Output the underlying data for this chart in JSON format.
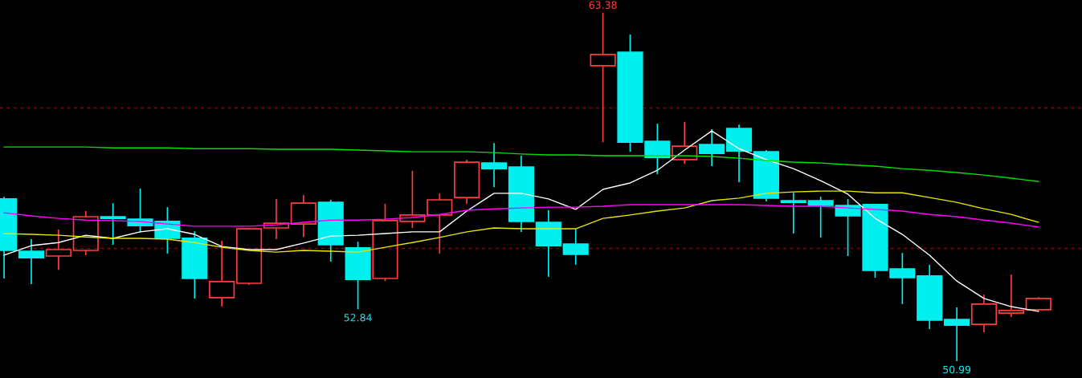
{
  "chart_data": {
    "type": "candlestick",
    "categories": [
      null,
      null,
      null,
      null,
      null,
      null,
      null,
      null,
      null,
      null,
      null,
      null,
      null,
      null,
      null,
      null,
      null,
      null,
      null,
      null,
      null,
      null,
      null,
      null,
      null,
      null,
      null,
      null,
      null,
      null,
      null,
      null,
      null,
      null,
      null,
      null,
      null,
      null,
      null
    ],
    "ohlc": [
      [
        56.76,
        56.84,
        53.93,
        54.93
      ],
      [
        54.9,
        55.33,
        53.73,
        54.67
      ],
      [
        54.73,
        55.67,
        54.24,
        54.96
      ],
      [
        54.93,
        56.33,
        54.76,
        56.13
      ],
      [
        56.13,
        56.61,
        55.13,
        56.07
      ],
      [
        56.04,
        57.13,
        55.56,
        55.81
      ],
      [
        55.96,
        56.47,
        54.82,
        55.36
      ],
      [
        55.36,
        55.61,
        53.22,
        53.93
      ],
      [
        53.25,
        55.27,
        52.93,
        53.82
      ],
      [
        53.76,
        55.73,
        53.7,
        55.7
      ],
      [
        55.73,
        56.76,
        55.33,
        55.9
      ],
      [
        55.87,
        56.9,
        55.41,
        56.61
      ],
      [
        56.64,
        56.73,
        54.53,
        55.13
      ],
      [
        55.02,
        55.24,
        52.84,
        53.9
      ],
      [
        53.93,
        56.59,
        53.84,
        55.99
      ],
      [
        55.96,
        57.76,
        55.73,
        56.19
      ],
      [
        56.19,
        56.96,
        54.82,
        56.73
      ],
      [
        56.81,
        58.16,
        56.59,
        58.07
      ],
      [
        58.04,
        58.75,
        57.18,
        57.84
      ],
      [
        57.9,
        58.3,
        55.59,
        55.96
      ],
      [
        55.93,
        56.36,
        53.99,
        55.1
      ],
      [
        55.16,
        55.7,
        54.42,
        54.79
      ],
      [
        61.5,
        63.38,
        58.78,
        61.9
      ],
      [
        61.98,
        62.61,
        58.44,
        58.78
      ],
      [
        58.81,
        59.44,
        57.64,
        58.24
      ],
      [
        58.16,
        59.5,
        58.01,
        58.64
      ],
      [
        58.7,
        59.24,
        57.93,
        58.38
      ],
      [
        59.27,
        59.41,
        57.36,
        58.47
      ],
      [
        58.44,
        58.5,
        56.67,
        56.79
      ],
      [
        56.7,
        56.98,
        55.53,
        56.64
      ],
      [
        56.7,
        56.84,
        55.39,
        56.53
      ],
      [
        56.53,
        56.76,
        54.73,
        56.16
      ],
      [
        56.56,
        56.56,
        53.96,
        54.22
      ],
      [
        54.27,
        54.84,
        53.02,
        53.96
      ],
      [
        54.02,
        54.42,
        52.13,
        52.45
      ],
      [
        52.47,
        52.9,
        50.99,
        52.27
      ],
      [
        52.3,
        53.36,
        52.02,
        53.02
      ],
      [
        52.7,
        54.07,
        52.56,
        52.79
      ],
      [
        52.82,
        53.27,
        52.76,
        53.22
      ]
    ],
    "colors": [
      "#00f0f0",
      "#00f0f0",
      "#ff3c3c",
      "#ff3c3c",
      "#00f0f0",
      "#00f0f0",
      "#00f0f0",
      "#00f0f0",
      "#ff3c3c",
      "#ff3c3c",
      "#ff3c3c",
      "#ff3c3c",
      "#00f0f0",
      "#00f0f0",
      "#ff3c3c",
      "#ff3c3c",
      "#ff3c3c",
      "#ff3c3c",
      "#00f0f0",
      "#00f0f0",
      "#00f0f0",
      "#00f0f0",
      "#ff3c3c",
      "#00f0f0",
      "#00f0f0",
      "#ff3c3c",
      "#00f0f0",
      "#00f0f0",
      "#00f0f0",
      "#00f0f0",
      "#00f0f0",
      "#00f0f0",
      "#00f0f0",
      "#00f0f0",
      "#00f0f0",
      "#00f0f0",
      "#ff3c3c",
      "#ff3c3c",
      "#ff3c3c"
    ],
    "series": [
      {
        "type": "line",
        "color": "#ffffff",
        "values": [
          54.76,
          55.1,
          55.21,
          55.47,
          55.36,
          55.59,
          55.7,
          55.5,
          55.07,
          54.96,
          54.96,
          55.19,
          55.44,
          55.47,
          55.53,
          55.59,
          55.59,
          56.33,
          56.96,
          56.96,
          56.76,
          56.39,
          57.1,
          57.33,
          57.78,
          58.5,
          59.18,
          58.55,
          58.16,
          57.84,
          57.41,
          56.93,
          56.07,
          55.5,
          54.76,
          53.84,
          53.22,
          52.93,
          52.76
        ]
      },
      {
        "type": "line",
        "color": "#e6e600",
        "values": [
          55.53,
          55.5,
          55.47,
          55.41,
          55.36,
          55.36,
          55.33,
          55.21,
          55.04,
          54.93,
          54.87,
          54.93,
          54.9,
          54.87,
          55.04,
          55.21,
          55.39,
          55.59,
          55.73,
          55.7,
          55.7,
          55.7,
          56.07,
          56.19,
          56.33,
          56.44,
          56.7,
          56.79,
          56.96,
          57.01,
          57.04,
          57.04,
          56.98,
          56.98,
          56.81,
          56.64,
          56.41,
          56.21,
          55.93
        ]
      },
      {
        "type": "line",
        "color": "#ff00ff",
        "values": [
          56.27,
          56.16,
          56.07,
          56.01,
          55.99,
          55.96,
          55.87,
          55.79,
          55.79,
          55.79,
          55.84,
          55.93,
          56.01,
          56.01,
          56.04,
          56.1,
          56.21,
          56.36,
          56.41,
          56.44,
          56.47,
          56.47,
          56.5,
          56.56,
          56.56,
          56.56,
          56.56,
          56.56,
          56.53,
          56.5,
          56.5,
          56.44,
          56.39,
          56.33,
          56.21,
          56.13,
          56.01,
          55.9,
          55.76
        ]
      },
      {
        "type": "line",
        "color": "#00e000",
        "values": [
          58.61,
          58.61,
          58.61,
          58.61,
          58.58,
          58.58,
          58.58,
          58.55,
          58.55,
          58.55,
          58.53,
          58.53,
          58.53,
          58.5,
          58.47,
          58.44,
          58.44,
          58.44,
          58.41,
          58.36,
          58.33,
          58.33,
          58.3,
          58.3,
          58.3,
          58.3,
          58.27,
          58.21,
          58.13,
          58.07,
          58.04,
          57.98,
          57.93,
          57.84,
          57.78,
          57.7,
          57.61,
          57.5,
          57.38
        ]
      }
    ],
    "ylim": [
      50.39,
      63.84
    ],
    "grid": false,
    "ref_lines": [
      {
        "axis": "y",
        "value": 60,
        "color": "#8b0000",
        "line_style": "dashed"
      },
      {
        "axis": "y",
        "value": 55,
        "color": "#8b0000",
        "line_style": "dashed"
      }
    ],
    "annotations": [
      {
        "text": "63.38",
        "y": 63.38
      },
      {
        "text": "52.84",
        "y": 52.84
      },
      {
        "text": "50.99",
        "y": 50.99
      }
    ]
  }
}
